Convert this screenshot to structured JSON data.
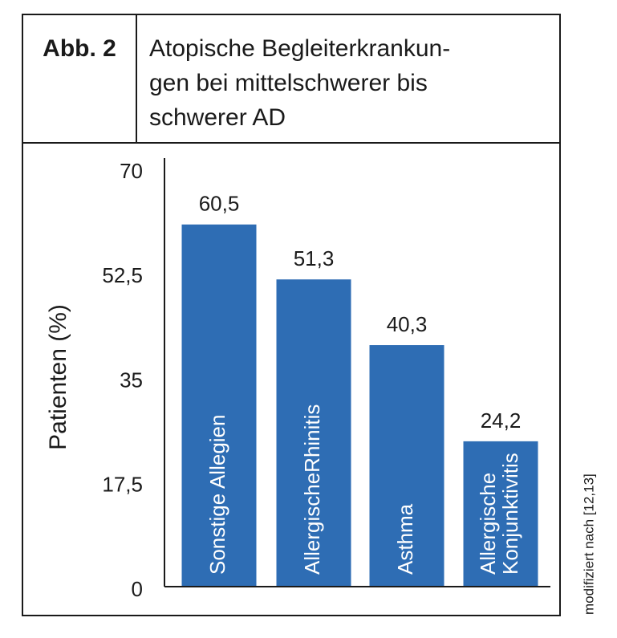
{
  "chart_data": {
    "type": "bar",
    "figure_label": "Abb. 2",
    "title": [
      "Atopische Begleiterkrankun-",
      "gen bei mittelschwerer bis",
      "schwerer AD"
    ],
    "y_label": "Patienten (%)",
    "source_note": "modifiziert nach [12,13]",
    "categories": [
      "Sonstige Allegien",
      "AllergischeRhinitis",
      "Asthma",
      "Allergische Konjunktivitis"
    ],
    "values": [
      60.5,
      51.3,
      40.3,
      24.2
    ],
    "value_labels": [
      "60,5",
      "51,3",
      "40,3",
      "24,2"
    ],
    "color": "#2e6db4",
    "ylim": [
      0,
      70
    ],
    "yticks": [
      0,
      {
        "value": 17.5,
        "label": "17,5"
      },
      35,
      {
        "value": 52.5,
        "label": "52,5"
      },
      70
    ],
    "grid": false
  }
}
